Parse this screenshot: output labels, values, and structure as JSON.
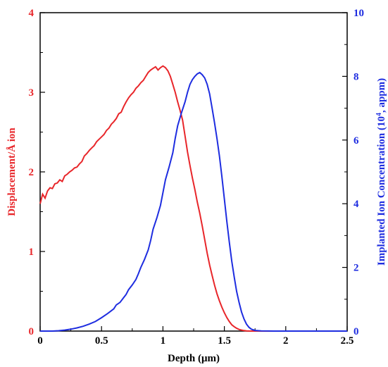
{
  "chart_data": {
    "type": "line",
    "xlabel": "Depth (μm)",
    "ylabel": "Displacement/Å ion",
    "y2label_parts": [
      "Implanted Ion Concentration (10",
      "4",
      ", appm)"
    ],
    "xlim": [
      0,
      2.5
    ],
    "ylim": [
      0,
      4
    ],
    "y2lim": [
      0,
      10
    ],
    "xticks": [
      "0",
      "0.5",
      "1",
      "1.5",
      "2",
      "2.5"
    ],
    "yticks": [
      "0",
      "1",
      "2",
      "3",
      "4"
    ],
    "y2ticks": [
      "0",
      "2",
      "4",
      "6",
      "8",
      "10"
    ],
    "grid": false,
    "series": [
      {
        "axis": "left",
        "color": "#e8262a",
        "x": [
          0,
          0.02,
          0.04,
          0.06,
          0.08,
          0.1,
          0.12,
          0.14,
          0.16,
          0.18,
          0.2,
          0.22,
          0.24,
          0.26,
          0.28,
          0.3,
          0.32,
          0.34,
          0.36,
          0.38,
          0.4,
          0.42,
          0.44,
          0.46,
          0.48,
          0.5,
          0.52,
          0.54,
          0.56,
          0.58,
          0.6,
          0.62,
          0.64,
          0.66,
          0.68,
          0.7,
          0.72,
          0.74,
          0.76,
          0.78,
          0.8,
          0.82,
          0.84,
          0.86,
          0.88,
          0.9,
          0.92,
          0.94,
          0.96,
          0.98,
          1.0,
          1.02,
          1.04,
          1.06,
          1.08,
          1.1,
          1.12,
          1.14,
          1.16,
          1.18,
          1.2,
          1.22,
          1.24,
          1.26,
          1.28,
          1.3,
          1.32,
          1.34,
          1.36,
          1.38,
          1.4,
          1.42,
          1.44,
          1.46,
          1.48,
          1.5,
          1.52,
          1.54,
          1.56,
          1.58,
          1.6,
          1.62,
          1.64,
          1.66,
          1.68,
          1.7,
          1.72,
          1.74,
          1.76,
          1.8,
          1.9,
          2.0,
          2.2,
          2.5
        ],
        "y": [
          1.6,
          1.72,
          1.67,
          1.76,
          1.8,
          1.79,
          1.85,
          1.86,
          1.9,
          1.88,
          1.95,
          1.97,
          2.0,
          2.02,
          2.05,
          2.06,
          2.1,
          2.13,
          2.2,
          2.23,
          2.27,
          2.3,
          2.33,
          2.38,
          2.41,
          2.44,
          2.47,
          2.52,
          2.55,
          2.6,
          2.63,
          2.67,
          2.73,
          2.75,
          2.82,
          2.88,
          2.93,
          2.97,
          3.0,
          3.05,
          3.08,
          3.12,
          3.15,
          3.2,
          3.25,
          3.28,
          3.3,
          3.32,
          3.28,
          3.31,
          3.33,
          3.31,
          3.27,
          3.2,
          3.1,
          3.0,
          2.88,
          2.77,
          2.65,
          2.45,
          2.25,
          2.08,
          1.92,
          1.78,
          1.62,
          1.48,
          1.32,
          1.15,
          0.98,
          0.83,
          0.7,
          0.58,
          0.47,
          0.38,
          0.3,
          0.23,
          0.17,
          0.12,
          0.08,
          0.055,
          0.035,
          0.02,
          0.012,
          0.006,
          0.003,
          0.001,
          0,
          0,
          0,
          0,
          0,
          0,
          0,
          0
        ]
      },
      {
        "axis": "right",
        "color": "#1e2de0",
        "x": [
          0,
          0.1,
          0.15,
          0.2,
          0.25,
          0.3,
          0.35,
          0.4,
          0.45,
          0.5,
          0.55,
          0.6,
          0.62,
          0.65,
          0.68,
          0.7,
          0.72,
          0.75,
          0.78,
          0.8,
          0.82,
          0.85,
          0.88,
          0.9,
          0.92,
          0.95,
          0.98,
          1.0,
          1.02,
          1.05,
          1.08,
          1.1,
          1.12,
          1.15,
          1.18,
          1.2,
          1.22,
          1.24,
          1.26,
          1.28,
          1.3,
          1.32,
          1.34,
          1.36,
          1.38,
          1.4,
          1.42,
          1.44,
          1.46,
          1.48,
          1.5,
          1.52,
          1.54,
          1.56,
          1.58,
          1.6,
          1.62,
          1.64,
          1.66,
          1.68,
          1.7,
          1.72,
          1.75,
          1.8,
          1.9,
          2.0,
          2.2,
          2.5
        ],
        "y": [
          0,
          0,
          0.01,
          0.03,
          0.06,
          0.1,
          0.15,
          0.22,
          0.3,
          0.42,
          0.55,
          0.7,
          0.82,
          0.9,
          1.05,
          1.15,
          1.3,
          1.45,
          1.62,
          1.8,
          2.0,
          2.25,
          2.55,
          2.85,
          3.2,
          3.55,
          3.95,
          4.35,
          4.75,
          5.15,
          5.6,
          6.05,
          6.45,
          6.85,
          7.2,
          7.5,
          7.75,
          7.9,
          8.0,
          8.08,
          8.12,
          8.05,
          7.95,
          7.75,
          7.45,
          7.0,
          6.55,
          6.05,
          5.5,
          4.85,
          4.15,
          3.45,
          2.8,
          2.2,
          1.7,
          1.25,
          0.9,
          0.6,
          0.38,
          0.22,
          0.12,
          0.06,
          0.02,
          0.005,
          0,
          0,
          0,
          0
        ]
      }
    ],
    "colors": {
      "axis": "#000000",
      "left_axis": "#e8262a",
      "right_axis": "#1e2de0"
    }
  }
}
